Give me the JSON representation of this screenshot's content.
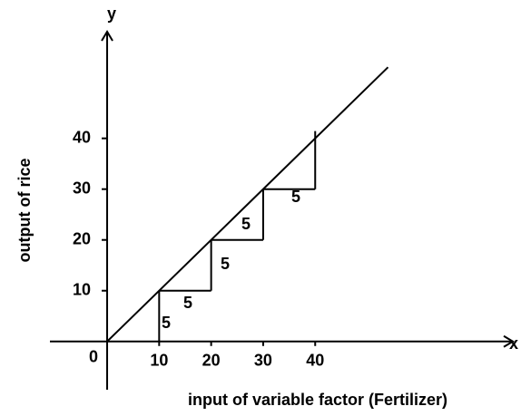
{
  "chart_data": {
    "type": "line",
    "xlabel": "input of variable factor (Fertilizer)",
    "ylabel": "output of rice",
    "x_axis_name": "x",
    "y_axis_name": "y",
    "x": [
      0,
      54
    ],
    "y": [
      0,
      54
    ],
    "steps": {
      "x": [
        10,
        20,
        30,
        40
      ],
      "y": [
        10,
        20,
        30,
        40
      ]
    },
    "step_labels": [
      "5",
      "5",
      "5",
      "5",
      "5"
    ],
    "xlim": [
      -11,
      78
    ],
    "ylim": [
      -9.5,
      61
    ],
    "xticks": [
      0,
      10,
      20,
      30,
      40
    ],
    "yticks": [
      10,
      20,
      30,
      40
    ],
    "color": "#000000"
  }
}
